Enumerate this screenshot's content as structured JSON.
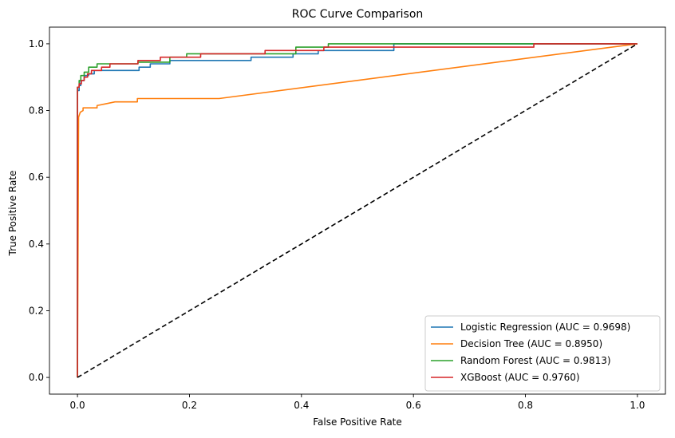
{
  "chart_data": {
    "type": "line",
    "title": "ROC Curve Comparison",
    "xlabel": "False Positive Rate",
    "ylabel": "True Positive Rate",
    "xlim": [
      -0.05,
      1.05
    ],
    "ylim": [
      -0.05,
      1.05
    ],
    "xticks": [
      0.0,
      0.2,
      0.4,
      0.6,
      0.8,
      1.0
    ],
    "yticks": [
      0.0,
      0.2,
      0.4,
      0.6,
      0.8,
      1.0
    ],
    "xtick_labels": [
      "0.0",
      "0.2",
      "0.4",
      "0.6",
      "0.8",
      "1.0"
    ],
    "ytick_labels": [
      "0.0",
      "0.2",
      "0.4",
      "0.6",
      "0.8",
      "1.0"
    ],
    "grid": false,
    "legend_position": "lower-right",
    "series": [
      {
        "name": "Logistic Regression (AUC = 0.9698)",
        "color": "#1f77b4",
        "x": [
          0,
          0,
          0.003,
          0.003,
          0.006,
          0.006,
          0.012,
          0.012,
          0.02,
          0.02,
          0.03,
          0.03,
          0.11,
          0.11,
          0.13,
          0.13,
          0.165,
          0.165,
          0.31,
          0.31,
          0.385,
          0.385,
          0.43,
          0.43,
          0.565,
          0.565,
          1.0
        ],
        "y": [
          0,
          0.86,
          0.86,
          0.875,
          0.875,
          0.89,
          0.89,
          0.905,
          0.905,
          0.91,
          0.91,
          0.92,
          0.92,
          0.93,
          0.93,
          0.94,
          0.94,
          0.95,
          0.95,
          0.96,
          0.96,
          0.97,
          0.97,
          0.98,
          0.98,
          1.0,
          1.0
        ]
      },
      {
        "name": "Decision Tree (AUC = 0.8950)",
        "color": "#ff7f0e",
        "x": [
          0,
          0.002,
          0.005,
          0.01,
          0.01,
          0.035,
          0.035,
          0.05,
          0.067,
          0.107,
          0.107,
          0.253,
          1.0
        ],
        "y": [
          0,
          0.78,
          0.795,
          0.8,
          0.808,
          0.808,
          0.815,
          0.82,
          0.826,
          0.826,
          0.836,
          0.836,
          1.0
        ]
      },
      {
        "name": "Random Forest (AUC = 0.9813)",
        "color": "#2ca02c",
        "x": [
          0,
          0,
          0.003,
          0.003,
          0.006,
          0.006,
          0.012,
          0.012,
          0.02,
          0.02,
          0.035,
          0.035,
          0.108,
          0.108,
          0.165,
          0.165,
          0.195,
          0.195,
          0.39,
          0.39,
          0.448,
          0.448,
          0.86,
          0.86,
          1.0
        ],
        "y": [
          0,
          0.87,
          0.87,
          0.89,
          0.89,
          0.905,
          0.905,
          0.915,
          0.915,
          0.93,
          0.93,
          0.94,
          0.94,
          0.945,
          0.945,
          0.96,
          0.96,
          0.97,
          0.97,
          0.99,
          0.99,
          1.0,
          1.0,
          1.0,
          1.0
        ]
      },
      {
        "name": "XGBoost (AUC = 0.9760)",
        "color": "#d62728",
        "x": [
          0,
          0,
          0.003,
          0.003,
          0.007,
          0.007,
          0.012,
          0.012,
          0.018,
          0.018,
          0.025,
          0.025,
          0.043,
          0.043,
          0.058,
          0.058,
          0.108,
          0.108,
          0.148,
          0.148,
          0.22,
          0.22,
          0.335,
          0.335,
          0.44,
          0.44,
          0.815,
          0.815,
          1.0
        ],
        "y": [
          0,
          0.87,
          0.87,
          0.88,
          0.88,
          0.89,
          0.89,
          0.9,
          0.9,
          0.91,
          0.91,
          0.92,
          0.92,
          0.93,
          0.93,
          0.94,
          0.94,
          0.95,
          0.95,
          0.96,
          0.96,
          0.97,
          0.97,
          0.98,
          0.98,
          0.99,
          0.99,
          1.0,
          1.0
        ]
      },
      {
        "name": "",
        "color": "#000000",
        "dash": "dashed",
        "x": [
          0,
          1
        ],
        "y": [
          0,
          1
        ]
      }
    ]
  }
}
